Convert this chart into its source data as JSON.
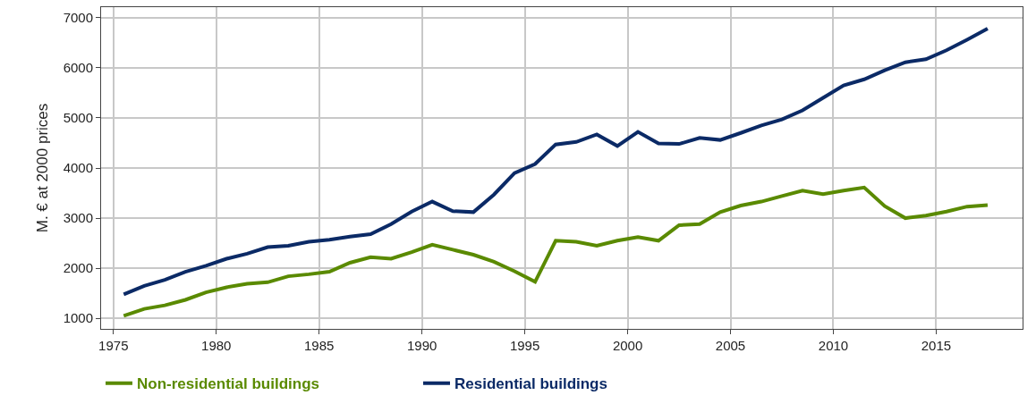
{
  "chart_data": {
    "type": "line",
    "ylabel": "M. € at 2000 prices",
    "x": [
      1975.5,
      1976.5,
      1977.5,
      1978.5,
      1979.5,
      1980.5,
      1981.5,
      1982.5,
      1983.5,
      1984.5,
      1985.5,
      1986.5,
      1987.5,
      1988.5,
      1989.5,
      1990.5,
      1991.5,
      1992.5,
      1993.5,
      1994.5,
      1995.5,
      1996.5,
      1997.5,
      1998.5,
      1999.5,
      2000.5,
      2001.5,
      2002.5,
      2003.5,
      2004.5,
      2005.5,
      2006.5,
      2007.5,
      2008.5,
      2009.5,
      2010.5,
      2011.5,
      2012.5,
      2013.5,
      2014.5,
      2015.5,
      2016.5,
      2017.5
    ],
    "series": [
      {
        "name": "Non-residential buildings",
        "color": "#5a8a00",
        "values": [
          1050,
          1190,
          1260,
          1370,
          1520,
          1620,
          1690,
          1720,
          1840,
          1880,
          1930,
          2110,
          2220,
          2190,
          2320,
          2470,
          2370,
          2270,
          2130,
          1940,
          1730,
          2550,
          2530,
          2450,
          2550,
          2620,
          2550,
          2860,
          2880,
          3120,
          3250,
          3330,
          3440,
          3550,
          3480,
          3550,
          3610,
          3240,
          3000,
          3050,
          3130,
          3230,
          3260
        ]
      },
      {
        "name": "Residential buildings",
        "color": "#0b2a66",
        "values": [
          1480,
          1650,
          1770,
          1930,
          2050,
          2190,
          2290,
          2420,
          2450,
          2530,
          2570,
          2630,
          2680,
          2880,
          3130,
          3330,
          3140,
          3120,
          3470,
          3900,
          4080,
          4470,
          4520,
          4670,
          4440,
          4720,
          4490,
          4480,
          4600,
          4560,
          4700,
          4850,
          4970,
          5150,
          5400,
          5650,
          5770,
          5950,
          6110,
          6170,
          6350,
          6560,
          6780
        ]
      }
    ],
    "xlim": [
      1974.4,
      2019.2
    ],
    "xticks": [
      1975,
      1980,
      1985,
      1990,
      1995,
      2000,
      2005,
      2010,
      2015
    ],
    "ylim": [
      790,
      7210
    ],
    "yticks": [
      1000,
      2000,
      3000,
      4000,
      5000,
      6000,
      7000
    ],
    "grid": true,
    "legend": "bottom",
    "marker": "none",
    "line_style": "solid"
  }
}
